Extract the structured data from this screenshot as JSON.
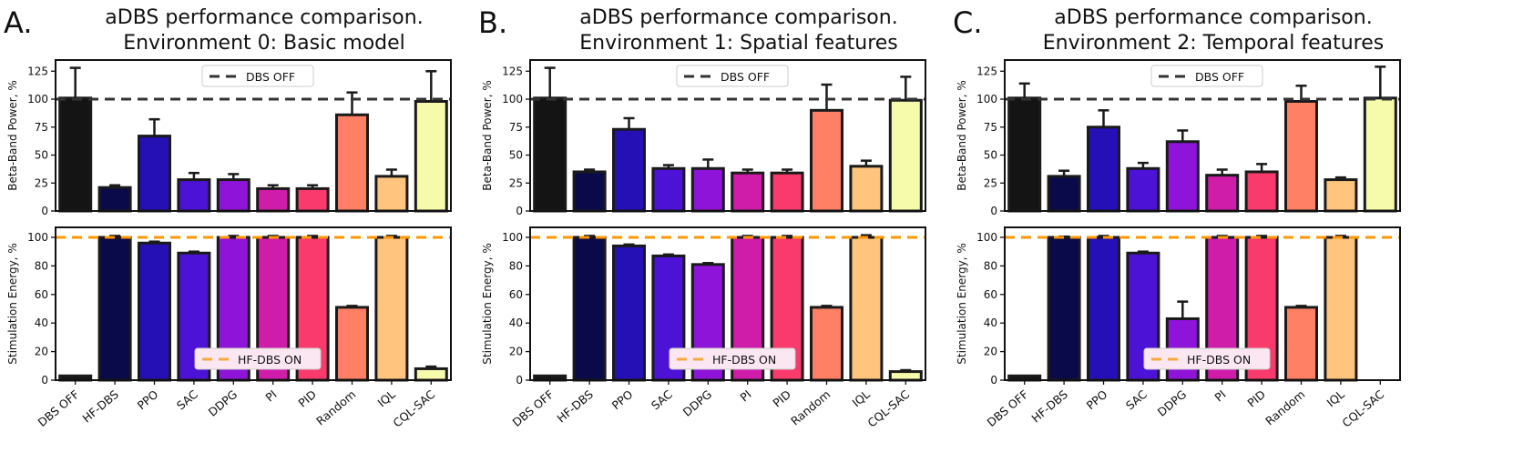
{
  "legend_labels": {
    "dbs_off": "DBS OFF",
    "hf_dbs_on": "HF-DBS  ON"
  },
  "colors": {
    "bars": [
      "#141414",
      "#0a0a4a",
      "#2410b4",
      "#4c12d6",
      "#8e14d9",
      "#cf1ca9",
      "#f93a6c",
      "#ff8065",
      "#ffc47e",
      "#f6fbac"
    ],
    "dbs_off_line": "#333333",
    "hf_dbs_line": "#ff9800"
  },
  "chart_data": [
    {
      "panel": "A.",
      "title": [
        "aDBS performance comparison.",
        "Environment 0: Basic model"
      ],
      "type": "bar",
      "categories": [
        "DBS OFF",
        "HF-DBS",
        "PPO",
        "SAC",
        "DDPG",
        "PI",
        "PID",
        "Random",
        "IQL",
        "CQL-SAC"
      ],
      "top": {
        "ylabel": "Beta-Band Power, %",
        "ylim": [
          0,
          135
        ],
        "yticks": [
          0,
          25,
          50,
          75,
          100,
          125
        ],
        "reference_line": 100,
        "legend": "DBS OFF",
        "values": [
          101,
          21,
          67,
          28,
          28,
          20,
          20,
          86,
          31,
          98
        ],
        "errors": [
          27,
          2,
          15,
          6,
          5,
          3,
          3,
          20,
          6,
          27
        ]
      },
      "bottom": {
        "ylabel": "Stimulation Energy, %",
        "ylim": [
          0,
          107
        ],
        "yticks": [
          0,
          20,
          40,
          60,
          80,
          100
        ],
        "reference_line": 100,
        "legend": "HF-DBS  ON",
        "values": [
          3,
          100,
          96,
          89,
          100,
          100,
          100,
          51,
          100,
          8
        ],
        "errors": [
          0,
          1,
          1,
          1,
          1,
          1,
          1,
          1,
          1,
          1.5
        ]
      }
    },
    {
      "panel": "B.",
      "title": [
        "aDBS performance comparison.",
        "Environment 1: Spatial features"
      ],
      "type": "bar",
      "categories": [
        "DBS OFF",
        "HF-DBS",
        "PPO",
        "SAC",
        "DDPG",
        "PI",
        "PID",
        "Random",
        "IQL",
        "CQL-SAC"
      ],
      "top": {
        "ylabel": "Beta-Band Power, %",
        "ylim": [
          0,
          135
        ],
        "yticks": [
          0,
          25,
          50,
          75,
          100,
          125
        ],
        "reference_line": 100,
        "legend": "DBS OFF",
        "values": [
          101,
          35,
          73,
          38,
          38,
          34,
          34,
          90,
          40,
          99
        ],
        "errors": [
          27,
          2,
          10,
          3,
          8,
          3,
          3,
          23,
          5,
          21
        ]
      },
      "bottom": {
        "ylabel": "Stimulation Energy, %",
        "ylim": [
          0,
          107
        ],
        "yticks": [
          0,
          20,
          40,
          60,
          80,
          100
        ],
        "reference_line": 100,
        "legend": "HF-DBS  ON",
        "values": [
          3,
          100,
          94,
          87,
          81,
          100,
          100,
          51,
          100,
          6
        ],
        "errors": [
          0,
          1,
          1,
          1,
          1,
          1,
          1,
          1,
          1.5,
          1
        ]
      }
    },
    {
      "panel": "C.",
      "title": [
        "aDBS performance comparison.",
        "Environment 2: Temporal features"
      ],
      "type": "bar",
      "categories": [
        "DBS OFF",
        "HF-DBS",
        "PPO",
        "SAC",
        "DDPG",
        "PI",
        "PID",
        "Random",
        "IQL",
        "CQL-SAC"
      ],
      "top": {
        "ylabel": "Beta-Band Power, %",
        "ylim": [
          0,
          135
        ],
        "yticks": [
          0,
          25,
          50,
          75,
          100,
          125
        ],
        "reference_line": 100,
        "legend": "DBS OFF",
        "values": [
          101,
          31,
          75,
          38,
          62,
          32,
          35,
          98,
          28,
          101
        ],
        "errors": [
          13,
          5,
          15,
          5,
          10,
          5,
          7,
          14,
          2,
          28
        ]
      },
      "bottom": {
        "ylabel": "Stimulation Energy, %",
        "ylim": [
          0,
          107
        ],
        "yticks": [
          0,
          20,
          40,
          60,
          80,
          100
        ],
        "reference_line": 100,
        "legend": "HF-DBS  ON",
        "values": [
          3,
          100,
          100,
          89,
          43,
          100,
          100,
          51,
          100,
          0
        ],
        "errors": [
          0,
          0.5,
          1,
          1,
          12,
          1,
          1,
          1,
          1,
          0
        ]
      }
    }
  ]
}
